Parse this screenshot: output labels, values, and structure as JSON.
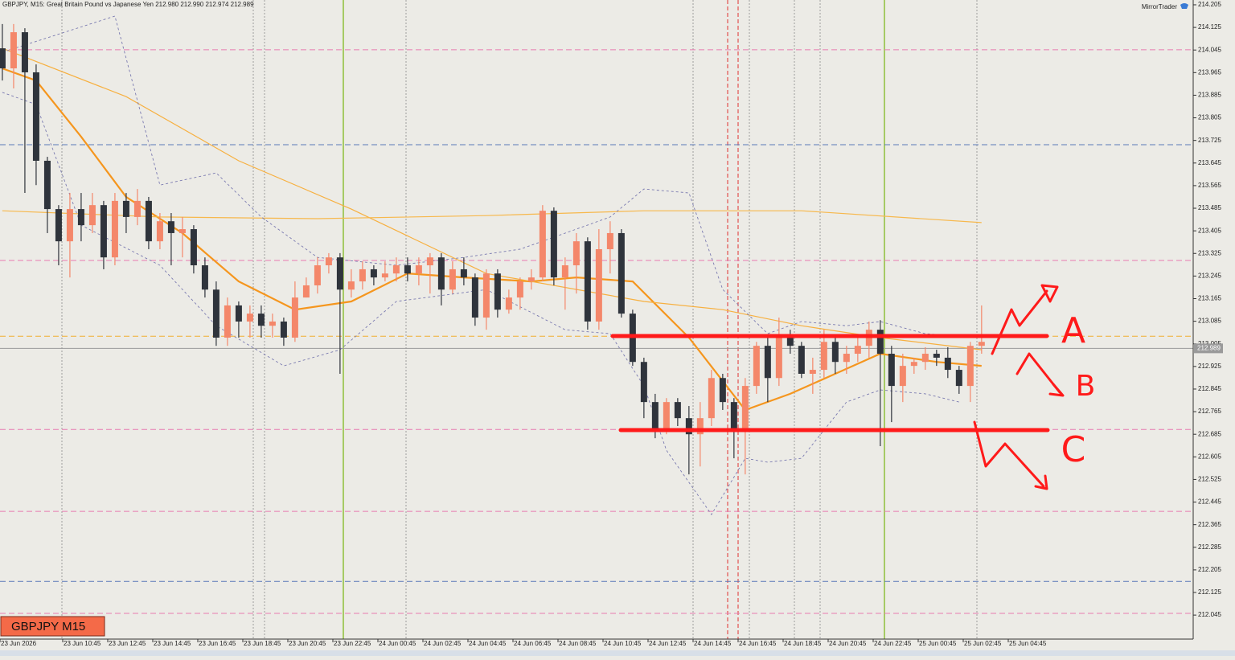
{
  "chart_data": {
    "type": "candlestick",
    "title": "GBPJPY, M15:  Great Britain Pound vs Japanese Yen  212.980 212.990 212.974 212.989",
    "brand": "MirrorTrader",
    "badge": "GBPJPY M15",
    "current_price": 212.989,
    "bull_color": "#f4876a",
    "bear_color": "#2f343c",
    "xlim": [
      -0.21,
      105.8
    ],
    "ylim": [
      211.96,
      214.222
    ],
    "yticks": [
      214.205,
      214.125,
      214.045,
      213.965,
      213.885,
      213.805,
      213.725,
      213.645,
      213.565,
      213.485,
      213.405,
      213.325,
      213.245,
      213.165,
      213.085,
      213.005,
      212.925,
      212.845,
      212.765,
      212.685,
      212.605,
      212.525,
      212.445,
      212.365,
      212.285,
      212.205,
      212.125,
      212.045
    ],
    "x_labels": [
      "23 Jun 2026",
      "23 Jun 10:45",
      "23 Jun 12:45",
      "23 Jun 14:45",
      "23 Jun 16:45",
      "23 Jun 18:45",
      "23 Jun 20:45",
      "23 Jun 22:45",
      "24 Jun 00:45",
      "24 Jun 02:45",
      "24 Jun 04:45",
      "24 Jun 06:45",
      "24 Jun 08:45",
      "24 Jun 10:45",
      "24 Jun 12:45",
      "24 Jun 14:45",
      "24 Jun 16:45",
      "24 Jun 18:45",
      "24 Jun 20:45",
      "24 Jun 22:45",
      "25 Jun 00:45",
      "25 Jun 02:45",
      "25 Jun 04:45"
    ],
    "ohlc": [
      [
        214.051,
        214.137,
        213.937,
        213.98
      ],
      [
        213.98,
        214.137,
        213.909,
        214.108
      ],
      [
        214.108,
        214.122,
        213.539,
        213.966
      ],
      [
        213.966,
        213.994,
        213.567,
        213.653
      ],
      [
        213.653,
        213.667,
        213.397,
        213.482
      ],
      [
        213.482,
        213.496,
        213.283,
        213.368
      ],
      [
        213.368,
        213.539,
        213.24,
        213.482
      ],
      [
        213.482,
        213.539,
        213.368,
        213.425
      ],
      [
        213.425,
        213.539,
        213.397,
        213.496
      ],
      [
        213.496,
        213.511,
        213.269,
        213.311
      ],
      [
        213.311,
        213.539,
        213.283,
        213.511
      ],
      [
        213.511,
        213.539,
        213.397,
        213.454
      ],
      [
        213.454,
        213.553,
        213.425,
        213.511
      ],
      [
        213.511,
        213.525,
        213.34,
        213.368
      ],
      [
        213.368,
        213.468,
        213.34,
        213.439
      ],
      [
        213.439,
        213.468,
        213.283,
        213.397
      ],
      [
        213.397,
        213.454,
        213.311,
        213.411
      ],
      [
        213.411,
        213.425,
        213.254,
        213.283
      ],
      [
        213.283,
        213.311,
        213.169,
        213.197
      ],
      [
        213.197,
        213.226,
        212.998,
        213.027
      ],
      [
        213.027,
        213.169,
        212.998,
        213.141
      ],
      [
        213.141,
        213.155,
        213.027,
        213.084
      ],
      [
        213.084,
        213.141,
        213.027,
        213.112
      ],
      [
        213.112,
        213.141,
        213.027,
        213.069
      ],
      [
        213.069,
        213.112,
        213.027,
        213.084
      ],
      [
        213.084,
        213.098,
        212.998,
        213.027
      ],
      [
        213.027,
        213.226,
        213.012,
        213.169
      ],
      [
        213.169,
        213.24,
        213.169,
        213.212
      ],
      [
        213.212,
        213.311,
        213.183,
        213.283
      ],
      [
        213.283,
        213.326,
        213.254,
        213.311
      ],
      [
        213.311,
        213.326,
        212.899,
        213.197
      ],
      [
        213.197,
        213.269,
        213.169,
        213.226
      ],
      [
        213.226,
        213.297,
        213.197,
        213.269
      ],
      [
        213.269,
        213.283,
        213.212,
        213.24
      ],
      [
        213.24,
        213.297,
        213.226,
        213.254
      ],
      [
        213.254,
        213.311,
        213.226,
        213.283
      ],
      [
        213.283,
        213.311,
        213.226,
        213.254
      ],
      [
        213.254,
        213.311,
        213.212,
        213.283
      ],
      [
        213.283,
        213.326,
        213.183,
        213.311
      ],
      [
        213.311,
        213.326,
        213.141,
        213.197
      ],
      [
        213.197,
        213.297,
        213.183,
        213.269
      ],
      [
        213.269,
        213.311,
        213.212,
        213.24
      ],
      [
        213.24,
        213.254,
        213.069,
        213.098
      ],
      [
        213.098,
        213.269,
        213.055,
        213.254
      ],
      [
        213.254,
        213.269,
        213.098,
        213.126
      ],
      [
        213.126,
        213.197,
        213.112,
        213.169
      ],
      [
        213.169,
        213.24,
        213.126,
        213.226
      ],
      [
        213.226,
        213.269,
        213.197,
        213.24
      ],
      [
        213.24,
        213.496,
        213.226,
        213.476
      ],
      [
        213.476,
        213.488,
        213.212,
        213.24
      ],
      [
        213.24,
        213.311,
        213.126,
        213.283
      ],
      [
        213.283,
        213.397,
        213.183,
        213.368
      ],
      [
        213.368,
        213.382,
        213.055,
        213.084
      ],
      [
        213.084,
        213.411,
        213.055,
        213.34
      ],
      [
        213.34,
        213.439,
        213.254,
        213.397
      ],
      [
        213.397,
        213.411,
        213.098,
        213.112
      ],
      [
        213.112,
        213.126,
        212.927,
        212.941
      ],
      [
        212.941,
        212.956,
        212.742,
        212.799
      ],
      [
        212.799,
        212.828,
        212.671,
        212.699
      ],
      [
        212.699,
        212.813,
        212.685,
        212.799
      ],
      [
        212.799,
        212.813,
        212.714,
        212.742
      ],
      [
        212.742,
        212.785,
        212.543,
        212.685
      ],
      [
        212.685,
        212.799,
        212.571,
        212.742
      ],
      [
        212.742,
        212.913,
        212.714,
        212.884
      ],
      [
        212.884,
        212.899,
        212.771,
        212.799
      ],
      [
        212.799,
        212.813,
        212.6,
        212.699
      ],
      [
        212.699,
        212.884,
        212.543,
        212.856
      ],
      [
        212.856,
        213.012,
        212.828,
        212.998
      ],
      [
        212.998,
        213.027,
        212.799,
        212.884
      ],
      [
        212.884,
        213.098,
        212.856,
        213.027
      ],
      [
        213.027,
        213.055,
        212.97,
        212.998
      ],
      [
        212.998,
        213.012,
        212.884,
        212.899
      ],
      [
        212.899,
        212.956,
        212.828,
        212.913
      ],
      [
        212.913,
        213.055,
        212.884,
        213.012
      ],
      [
        213.012,
        213.027,
        212.899,
        212.941
      ],
      [
        212.941,
        212.998,
        212.899,
        212.97
      ],
      [
        212.97,
        213.027,
        212.941,
        212.998
      ],
      [
        212.998,
        213.084,
        212.956,
        213.055
      ],
      [
        213.055,
        213.089,
        212.643,
        212.97
      ],
      [
        212.97,
        212.998,
        212.728,
        212.856
      ],
      [
        212.856,
        212.97,
        212.799,
        212.927
      ],
      [
        212.927,
        212.956,
        212.899,
        212.941
      ],
      [
        212.941,
        212.993,
        212.913,
        212.97
      ],
      [
        212.97,
        212.984,
        212.927,
        212.956
      ],
      [
        212.956,
        212.993,
        212.884,
        212.913
      ],
      [
        212.913,
        212.927,
        212.828,
        212.856
      ],
      [
        212.856,
        213.012,
        212.799,
        212.998
      ],
      [
        212.998,
        213.141,
        212.97,
        213.012
      ]
    ],
    "indicators": [
      {
        "color": "#f5961e",
        "width": 2.2,
        "dash": false,
        "x": [
          0,
          3,
          7,
          11,
          16,
          21,
          26,
          31,
          36,
          41,
          47,
          51,
          56,
          61,
          66,
          70,
          74,
          78,
          83,
          87
        ],
        "values": [
          213.98,
          213.937,
          213.738,
          213.525,
          213.397,
          213.226,
          213.126,
          213.155,
          213.254,
          213.24,
          213.226,
          213.24,
          213.226,
          213.027,
          212.771,
          212.828,
          212.899,
          212.97,
          212.941,
          212.927
        ]
      },
      {
        "color": "#f7b040",
        "width": 1.2,
        "dash": false,
        "x": [
          0,
          11,
          21,
          31,
          43,
          57,
          64,
          71,
          78,
          87
        ],
        "values": [
          214.051,
          213.88,
          213.653,
          213.482,
          213.254,
          213.155,
          213.126,
          213.069,
          213.027,
          212.984
        ]
      },
      {
        "color": "#f7b84c",
        "width": 1.2,
        "dash": false,
        "x": [
          0,
          14,
          28,
          43,
          57,
          64,
          71,
          87
        ],
        "values": [
          213.476,
          213.454,
          213.448,
          213.459,
          213.476,
          213.476,
          213.476,
          213.434
        ]
      },
      {
        "color": "#7a7ab0",
        "width": 0.9,
        "dash": true,
        "x": [
          0,
          10,
          14,
          19,
          23,
          28,
          35,
          41,
          46,
          50,
          54,
          57,
          61,
          64,
          68,
          71,
          75,
          78,
          82,
          87
        ],
        "values": [
          214.037,
          214.165,
          213.567,
          213.61,
          213.454,
          213.311,
          213.283,
          213.311,
          213.34,
          213.397,
          213.454,
          213.553,
          213.539,
          213.197,
          213.041,
          213.084,
          213.069,
          213.084,
          213.041,
          213.027
        ]
      },
      {
        "color": "#7a7ab0",
        "width": 0.9,
        "dash": true,
        "x": [
          0,
          3,
          7,
          14,
          19,
          25,
          30,
          35,
          43,
          50,
          54,
          57,
          59,
          63,
          66,
          68,
          71,
          75,
          78,
          82,
          85
        ],
        "values": [
          213.895,
          213.852,
          213.425,
          213.283,
          213.069,
          212.927,
          212.984,
          213.155,
          213.197,
          213.055,
          213.041,
          212.856,
          212.628,
          212.401,
          212.6,
          212.586,
          212.6,
          212.799,
          212.842,
          212.828,
          212.799
        ]
      }
    ],
    "levels": [
      {
        "value": 214.046,
        "color": "#e77bb0"
      },
      {
        "value": 213.3,
        "color": "#e77bb0"
      },
      {
        "value": 212.702,
        "color": "#e77bb0"
      },
      {
        "value": 212.412,
        "color": "#e77bb0"
      },
      {
        "value": 212.051,
        "color": "#e77bb0"
      },
      {
        "value": 213.71,
        "color": "#5a78b8"
      },
      {
        "value": 212.164,
        "color": "#5a78b8"
      },
      {
        "value": 213.032,
        "color": "#f0b030"
      }
    ],
    "annotations": [
      "A",
      "B",
      "C"
    ]
  }
}
